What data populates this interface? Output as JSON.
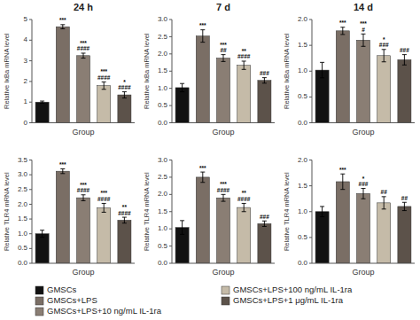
{
  "chart_data": [
    {
      "type": "bar",
      "title": "24 h",
      "x_label": "Group",
      "y_label": "Relative IκBa mRNA level",
      "categories": [
        "GMSCs",
        "GMSCs+LPS",
        "GMSCs+LPS+10 ng/mL IL-1ra",
        "GMSCs+LPS+100 ng/mL IL-1ra",
        "GMSCs+LPS+1 μg/mL IL-1ra"
      ],
      "colors": [
        "#111111",
        "#7a6e65",
        "#8a7e74",
        "#c5bba8",
        "#5c524a"
      ],
      "values": [
        1.0,
        4.65,
        3.25,
        1.8,
        1.35
      ],
      "errors": [
        0.05,
        0.1,
        0.12,
        0.18,
        0.15
      ],
      "ylim": [
        0,
        5
      ],
      "yticks": [
        0,
        1,
        2,
        3,
        4,
        5
      ],
      "annotations": [
        null,
        [
          "***"
        ],
        [
          "***",
          "####"
        ],
        [
          "***",
          "####"
        ],
        [
          "*",
          "####"
        ]
      ],
      "tick_labels": "y",
      "legend": "bottom"
    },
    {
      "type": "bar",
      "title": "7 d",
      "x_label": "Group",
      "y_label": "Relative IκBa mRNA level",
      "categories": [
        "GMSCs",
        "GMSCs+LPS",
        "GMSCs+LPS+10 ng/mL IL-1ra",
        "GMSCs+LPS+100 ng/mL IL-1ra",
        "GMSCs+LPS+1 μg/mL IL-1ra"
      ],
      "colors": [
        "#111111",
        "#7a6e65",
        "#8a7e74",
        "#c5bba8",
        "#5c524a"
      ],
      "values": [
        1.02,
        2.52,
        1.88,
        1.67,
        1.23
      ],
      "errors": [
        0.12,
        0.18,
        0.1,
        0.12,
        0.08
      ],
      "ylim": [
        0.0,
        3.0
      ],
      "yticks": [
        {
          "value": 0,
          "label": "0.0"
        },
        0.5,
        {
          "value": 1,
          "label": "1.0"
        },
        1.5,
        {
          "value": 2,
          "label": "2.0"
        },
        2.5,
        {
          "value": 3,
          "label": "3.0"
        }
      ],
      "annotations": [
        null,
        [
          "***"
        ],
        [
          "***",
          "##"
        ],
        [
          "**",
          "####"
        ],
        [
          "###"
        ]
      ],
      "tick_labels": "y"
    },
    {
      "type": "bar",
      "title": "14 d",
      "x_label": "Group",
      "y_label": "Relative IκBa mRNA level",
      "categories": [
        "GMSCs",
        "GMSCs+LPS",
        "GMSCs+LPS+10 ng/mL IL-1ra",
        "GMSCs+LPS+100 ng/mL IL-1ra",
        "GMSCs+LPS+1 μg/mL IL-1ra"
      ],
      "colors": [
        "#111111",
        "#7a6e65",
        "#8a7e74",
        "#c5bba8",
        "#5c524a"
      ],
      "values": [
        1.02,
        1.78,
        1.6,
        1.3,
        1.22
      ],
      "errors": [
        0.15,
        0.07,
        0.12,
        0.12,
        0.1
      ],
      "ylim": [
        0.0,
        2.0
      ],
      "yticks": [
        {
          "value": 0,
          "label": "0.0"
        },
        0.5,
        {
          "value": 1,
          "label": "1.0"
        },
        1.5,
        {
          "value": 2,
          "label": "2.0"
        }
      ],
      "annotations": [
        null,
        [
          "***"
        ],
        [
          "***",
          "#"
        ],
        [
          "*",
          "###"
        ],
        [
          "###"
        ]
      ],
      "tick_labels": "y"
    },
    {
      "type": "bar",
      "x_label": "Group",
      "y_label": "Relative TLR4 mRNA level",
      "categories": [
        "GMSCs",
        "GMSCs+LPS",
        "GMSCs+LPS+10 ng/mL IL-1ra",
        "GMSCs+LPS+100 ng/mL IL-1ra",
        "GMSCs+LPS+1 μg/mL IL-1ra"
      ],
      "colors": [
        "#111111",
        "#7a6e65",
        "#8a7e74",
        "#c5bba8",
        "#5c524a"
      ],
      "values": [
        1.0,
        3.12,
        2.22,
        1.88,
        1.46
      ],
      "errors": [
        0.12,
        0.08,
        0.1,
        0.15,
        0.1
      ],
      "ylim": [
        0.0,
        3.5
      ],
      "yticks": [
        {
          "value": 0,
          "label": "0.0"
        },
        0.5,
        {
          "value": 1,
          "label": "1.0"
        },
        1.5,
        {
          "value": 2,
          "label": "2.0"
        },
        2.5,
        {
          "value": 3,
          "label": "3.0"
        },
        3.5
      ],
      "annotations": [
        null,
        [
          "***"
        ],
        [
          "***",
          "####"
        ],
        [
          "***",
          "####"
        ],
        [
          "**",
          "####"
        ]
      ],
      "tick_labels": "y"
    },
    {
      "type": "bar",
      "x_label": "Group",
      "y_label": "Relative TLR4 mRNA level",
      "categories": [
        "GMSCs",
        "GMSCs+LPS",
        "GMSCs+LPS+10 ng/mL IL-1ra",
        "GMSCs+LPS+100 ng/mL IL-1ra",
        "GMSCs+LPS+1 μg/mL IL-1ra"
      ],
      "colors": [
        "#111111",
        "#7a6e65",
        "#8a7e74",
        "#c5bba8",
        "#5c524a"
      ],
      "values": [
        1.04,
        2.5,
        1.9,
        1.62,
        1.15
      ],
      "errors": [
        0.2,
        0.15,
        0.1,
        0.12,
        0.08
      ],
      "ylim": [
        0.0,
        3.0
      ],
      "yticks": [
        {
          "value": 0,
          "label": "0.0"
        },
        0.5,
        {
          "value": 1,
          "label": "1.0"
        },
        1.5,
        {
          "value": 2,
          "label": "2.0"
        },
        2.5,
        {
          "value": 3,
          "label": "3.0"
        }
      ],
      "annotations": [
        null,
        [
          "***"
        ],
        [
          "***",
          "####"
        ],
        [
          "**",
          "####"
        ],
        [
          "###"
        ]
      ],
      "tick_labels": "y"
    },
    {
      "type": "bar",
      "x_label": "Group",
      "y_label": "Relative TLR4 mRNA level",
      "categories": [
        "GMSCs",
        "GMSCs+LPS",
        "GMSCs+LPS+10 ng/mL IL-1ra",
        "GMSCs+LPS+100 ng/mL IL-1ra",
        "GMSCs+LPS+1 μg/mL IL-1ra"
      ],
      "colors": [
        "#111111",
        "#7a6e65",
        "#8a7e74",
        "#c5bba8",
        "#5c524a"
      ],
      "values": [
        1.0,
        1.58,
        1.35,
        1.17,
        1.1
      ],
      "errors": [
        0.1,
        0.15,
        0.1,
        0.12,
        0.08
      ],
      "ylim": [
        0.0,
        2.0
      ],
      "yticks": [
        {
          "value": 0,
          "label": "0.0"
        },
        0.5,
        {
          "value": 1,
          "label": "1.0"
        },
        1.5,
        {
          "value": 2,
          "label": "2.0"
        }
      ],
      "annotations": [
        null,
        [
          "***"
        ],
        [
          "*",
          "###"
        ],
        [
          "##"
        ],
        [
          "##"
        ]
      ],
      "tick_labels": "y"
    }
  ]
}
